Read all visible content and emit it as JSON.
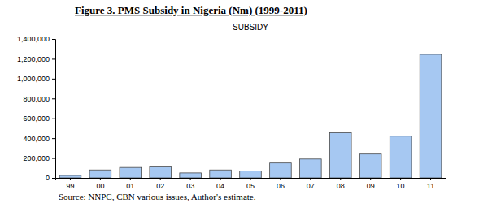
{
  "chart_data": {
    "type": "bar",
    "title": "Figure 3. PMS Subsidy in Nigeria (Nm) (1999-2011)",
    "subtitle": "SUBSIDY",
    "annotations": [
      "Source: NNPC, CBN various issues, Author's estimate."
    ],
    "categories": [
      "99",
      "00",
      "01",
      "02",
      "03",
      "04",
      "05",
      "06",
      "07",
      "08",
      "09",
      "10",
      "11"
    ],
    "values": [
      25000,
      80000,
      105000,
      110000,
      50000,
      80000,
      70000,
      150000,
      190000,
      455000,
      240000,
      420000,
      1245000
    ],
    "color": "#a6c8f2",
    "ylim": [
      0,
      1400000
    ],
    "yticks": [
      0,
      {
        "value": 200000,
        "label": "200,000"
      },
      {
        "value": 400000,
        "label": "400,000"
      },
      {
        "value": 600000,
        "label": "600,000"
      },
      {
        "value": 800000,
        "label": "800,000"
      },
      {
        "value": 1000000,
        "label": "1,000,000"
      },
      {
        "value": 1200000,
        "label": "1,200,000"
      },
      {
        "value": 1400000,
        "label": "1,400,000"
      }
    ],
    "grid": false
  }
}
